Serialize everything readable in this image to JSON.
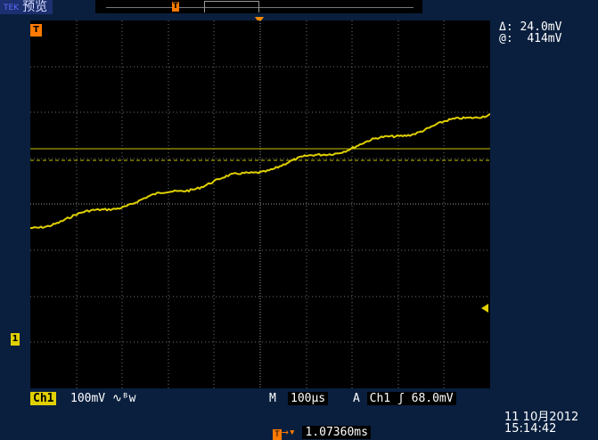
{
  "header": {
    "mode_tag": "TEK",
    "mode_label": "预览"
  },
  "cursor": {
    "delta_symbol": "Δ:",
    "delta_value": "24.0mV",
    "at_symbol": "@:",
    "at_value": "414mV"
  },
  "status": {
    "ch1_label": "Ch1",
    "ch1_scale": "100mV ∿ᴮw",
    "timebase_prefix": "M",
    "timebase_value": "100µs",
    "trigger_mode": "A",
    "trigger_source": "Ch1",
    "trigger_slope": "ʃ",
    "trigger_level": "68.0mV",
    "trigger_delay": "1.07360ms",
    "date": "11 10月2012",
    "time": "15:14:42"
  },
  "markers": {
    "t_marker": "T",
    "ch1_marker": "1"
  },
  "colors": {
    "trace": "#e0d000",
    "trigger": "#ff7a00",
    "background": "#0a1f3e"
  }
}
